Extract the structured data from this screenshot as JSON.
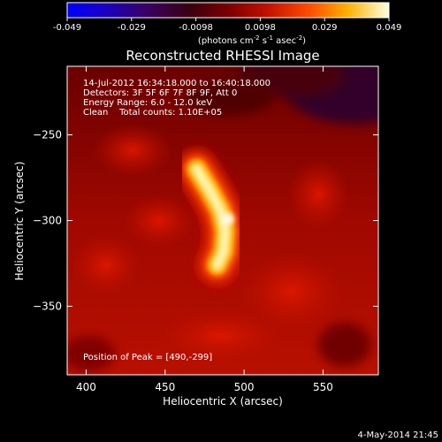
{
  "colorbar": {
    "ticks": [
      "-0.049",
      "-0.029",
      "-0.0098",
      "0.0098",
      "0.029",
      "0.049"
    ],
    "unit_prefix": "(photons cm",
    "unit_exp1": "-2",
    "unit_mid": " s",
    "unit_exp2": "-1",
    "unit_mid2": " asec",
    "unit_exp3": "-2",
    "unit_suffix": ")"
  },
  "annotations": {
    "line1": "14-Jul-2012 16:34:18.000 to 16:40:18.000",
    "line2": "Detectors: 3F 5F 6F 7F 8F 9F, Att 0",
    "line3": "Energy Range: 6.0 - 12.0 keV",
    "line4": "Clean    Total counts: 1.10E+05",
    "peak": "Position of Peak = [490,-299]"
  },
  "footer": {
    "timestamp": "4-May-2014 21:45"
  },
  "chart_data": {
    "type": "heatmap",
    "title": "Reconstructed RHESSI Image",
    "xlabel": "Heliocentric X (arcsec)",
    "ylabel": "Heliocentric Y (arcsec)",
    "xlim": [
      388,
      585
    ],
    "ylim": [
      -390,
      -210
    ],
    "xticks": [
      400,
      450,
      500,
      550
    ],
    "yticks": [
      -250,
      -300,
      -350
    ],
    "colorbar_range": [
      -0.049,
      0.049
    ],
    "colormap": "red-temperature",
    "source": {
      "peak": [
        490,
        -299
      ],
      "shape": "curved loop",
      "path": [
        [
          470,
          -270
        ],
        [
          478,
          -282
        ],
        [
          485,
          -294
        ],
        [
          488,
          -306
        ],
        [
          487,
          -318
        ],
        [
          483,
          -326
        ]
      ]
    }
  }
}
